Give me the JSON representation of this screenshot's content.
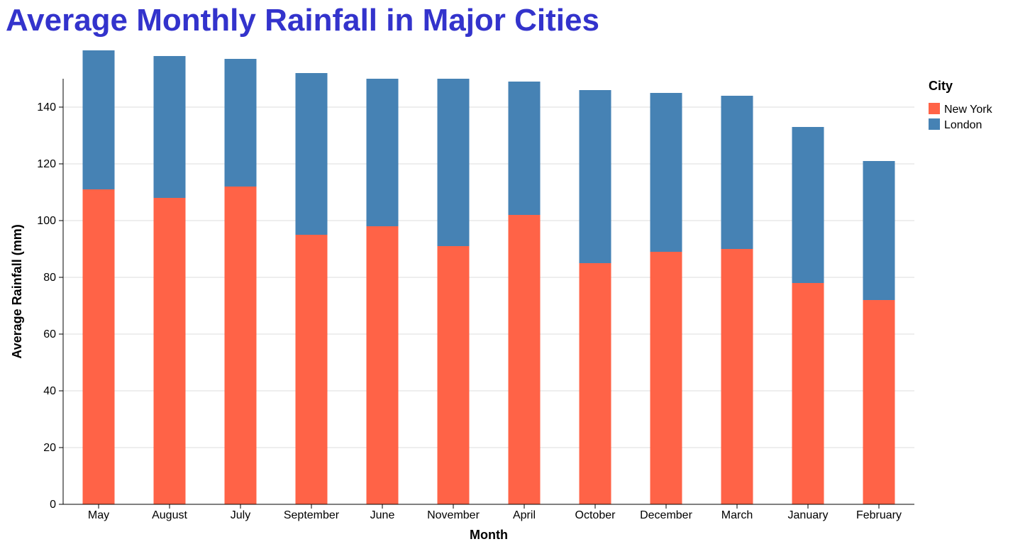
{
  "chart_data": {
    "type": "bar",
    "stacked": true,
    "title": "Average Monthly Rainfall in Major Cities",
    "title_color": "#3333cc",
    "xlabel": "Month",
    "ylabel": "Average Rainfall (mm)",
    "ylim": [
      0,
      150
    ],
    "yticks": [
      0,
      20,
      40,
      60,
      80,
      100,
      120,
      140
    ],
    "grid": "horizontal",
    "legend": {
      "title": "City",
      "placement": "right"
    },
    "categories": [
      "May",
      "August",
      "July",
      "September",
      "June",
      "November",
      "April",
      "October",
      "December",
      "March",
      "January",
      "February"
    ],
    "series": [
      {
        "name": "New York",
        "color": "#ff6347",
        "values": [
          111,
          108,
          112,
          95,
          98,
          91,
          102,
          85,
          89,
          90,
          78,
          72
        ]
      },
      {
        "name": "London",
        "color": "#4682b4",
        "values": [
          49,
          50,
          45,
          57,
          52,
          59,
          47,
          61,
          56,
          54,
          55,
          49
        ]
      }
    ]
  }
}
